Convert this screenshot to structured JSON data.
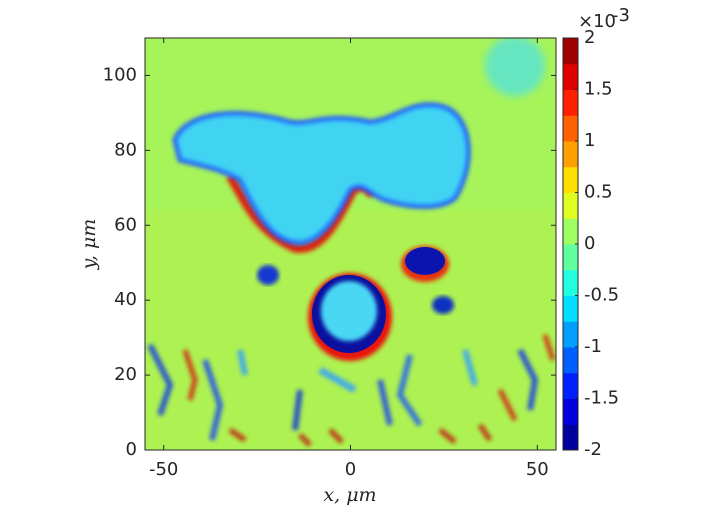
{
  "chart_data": {
    "type": "heatmap",
    "xlabel": "x, μm",
    "ylabel": "y, μm",
    "xlim": [
      -55,
      55
    ],
    "xticks": [
      -50,
      0,
      50
    ],
    "ylim": [
      0,
      110
    ],
    "yticks": [
      0,
      20,
      40,
      60,
      80,
      100
    ],
    "colormap": "jet",
    "colormap_levels": 16,
    "clim": [
      -2,
      2
    ],
    "cticks": [
      -2,
      -1.5,
      -1,
      -0.5,
      0,
      0.5,
      1,
      1.5,
      2
    ],
    "colorbar_multiplier": "×10",
    "colorbar_exponent": "-3"
  }
}
